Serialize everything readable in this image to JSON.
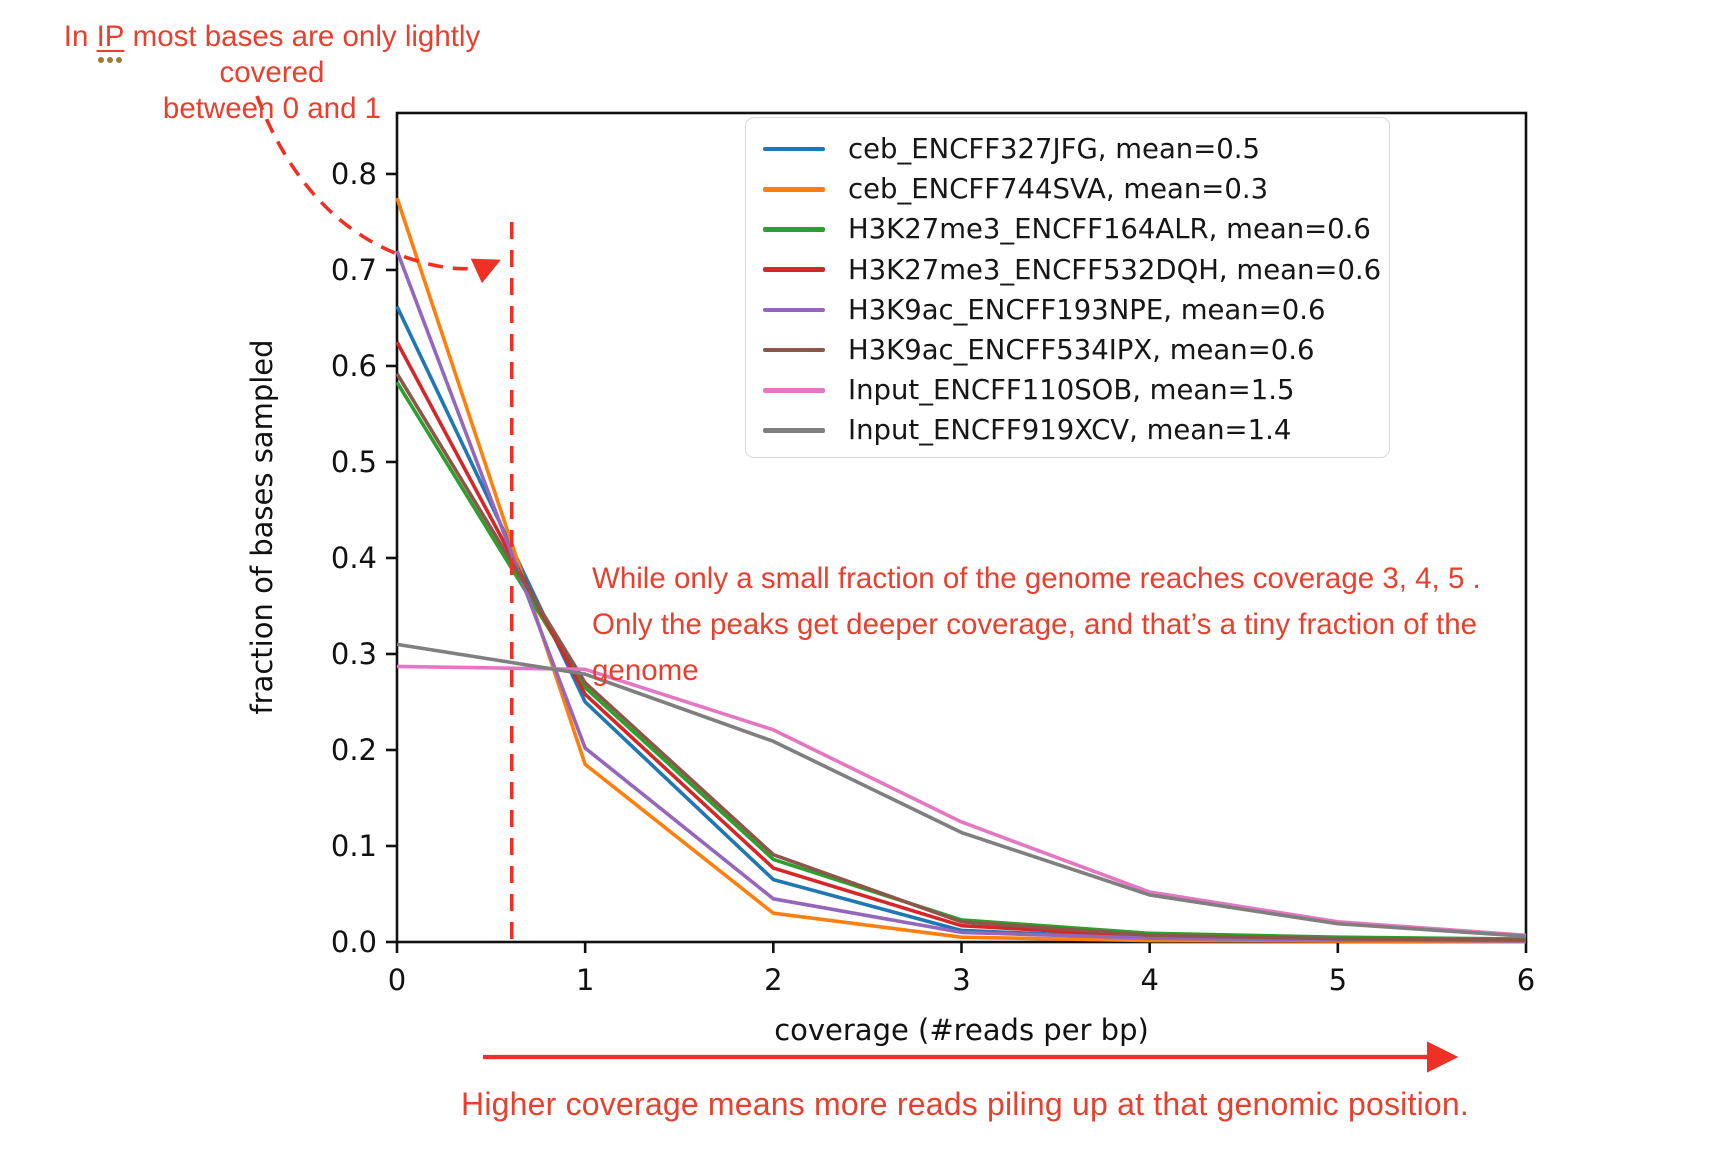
{
  "colors": {
    "annotation_text_red": "#e8402e",
    "annotation_line_red": "#ee3124",
    "axis_black": "#111111",
    "legend_border_gray": "#d9d9d9",
    "spellcheck_dot_gold": "#9d7d35"
  },
  "annotations": {
    "top_note": {
      "pre": "In ",
      "term": "IP",
      "post": " most bases are only lightly covered",
      "line2": "between 0 and 1"
    },
    "mid_note": "While only a small fraction of the genome reaches coverage 3, 4, 5 .\nOnly the peaks get deeper coverage, and that’s a tiny fraction of the\ngenome",
    "bottom_note": "Higher coverage means more reads piling up at that genomic position."
  },
  "chart_data": {
    "type": "line",
    "title": "",
    "xlabel": "coverage (#reads per bp)",
    "ylabel": "fraction of bases sampled",
    "xlim": [
      0,
      6
    ],
    "ylim": [
      0,
      0.8635
    ],
    "xticks": [
      0,
      1,
      2,
      3,
      4,
      5,
      6
    ],
    "yticks": [
      0.0,
      0.1,
      0.2,
      0.3,
      0.4,
      0.5,
      0.6,
      0.7,
      0.8
    ],
    "grid": false,
    "legend_position": "upper right",
    "x": [
      0,
      1,
      2,
      3,
      4,
      5,
      6
    ],
    "series": [
      {
        "name": "ceb_ENCFF327JFG, mean=0.5",
        "color": "#1f77b4",
        "values": [
          0.662,
          0.25,
          0.065,
          0.012,
          0.004,
          0.0015,
          0.001
        ]
      },
      {
        "name": "ceb_ENCFF744SVA, mean=0.3",
        "color": "#ff7f0e",
        "values": [
          0.775,
          0.185,
          0.03,
          0.005,
          0.0015,
          0.001,
          0.0005
        ]
      },
      {
        "name": "H3K27me3_ENCFF164ALR, mean=0.6",
        "color": "#2ca02c",
        "values": [
          0.583,
          0.265,
          0.086,
          0.023,
          0.009,
          0.005,
          0.003
        ]
      },
      {
        "name": "H3K27me3_ENCFF532DQH, mean=0.6",
        "color": "#d62728",
        "values": [
          0.625,
          0.258,
          0.077,
          0.017,
          0.006,
          0.0025,
          0.0015
        ]
      },
      {
        "name": "H3K9ac_ENCFF193NPE, mean=0.6",
        "color": "#9467bd",
        "values": [
          0.72,
          0.202,
          0.045,
          0.01,
          0.004,
          0.002,
          0.001
        ]
      },
      {
        "name": "H3K9ac_ENCFF534IPX, mean=0.6",
        "color": "#8c564b",
        "values": [
          0.592,
          0.27,
          0.091,
          0.021,
          0.007,
          0.0035,
          0.002
        ]
      },
      {
        "name": "Input_ENCFF110SOB, mean=1.5",
        "color": "#e377c2",
        "values": [
          0.287,
          0.284,
          0.221,
          0.125,
          0.052,
          0.021,
          0.007
        ]
      },
      {
        "name": "Input_ENCFF919XCV, mean=1.4",
        "color": "#7f7f7f",
        "values": [
          0.31,
          0.279,
          0.209,
          0.114,
          0.049,
          0.019,
          0.006
        ]
      }
    ],
    "annotation_vline": {
      "x": 0.61,
      "y_top": 0.75,
      "style": "dashed-red"
    }
  }
}
